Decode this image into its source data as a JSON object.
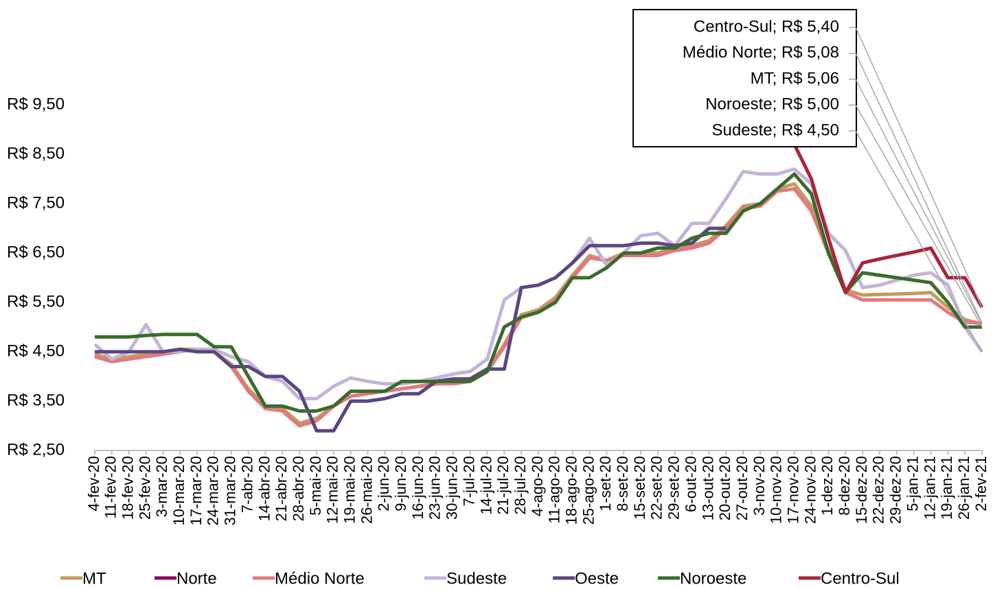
{
  "chart_data": {
    "type": "line",
    "categories": [
      "4-fev-20",
      "11-fev-20",
      "18-fev-20",
      "25-fev-20",
      "3-mar-20",
      "10-mar-20",
      "17-mar-20",
      "24-mar-20",
      "31-mar-20",
      "7-abr-20",
      "14-abr-20",
      "21-abr-20",
      "28-abr-20",
      "5-mai-20",
      "12-mai-20",
      "19-mai-20",
      "26-mai-20",
      "2-jun-20",
      "9-jun-20",
      "16-jun-20",
      "23-jun-20",
      "30-jun-20",
      "7-jul-20",
      "14-jul-20",
      "21-jul-20",
      "28-jul-20",
      "4-ago-20",
      "11-ago-20",
      "18-ago-20",
      "25-ago-20",
      "1-set-20",
      "8-set-20",
      "15-set-20",
      "22-set-20",
      "29-set-20",
      "6-out-20",
      "13-out-20",
      "20-out-20",
      "27-out-20",
      "3-nov-20",
      "10-nov-20",
      "17-nov-20",
      "24-nov-20",
      "1-dez-20",
      "8-dez-20",
      "15-dez-20",
      "22-dez-20",
      "29-dez-20",
      "5-jan-21",
      "12-jan-21",
      "19-jan-21",
      "26-jan-21",
      "2-fev-21"
    ],
    "series": [
      {
        "name": "MT",
        "color": "#c49a62",
        "values": [
          4.45,
          4.35,
          4.4,
          4.45,
          4.5,
          4.55,
          4.55,
          4.5,
          4.25,
          3.75,
          3.4,
          3.35,
          3.05,
          3.15,
          3.4,
          3.6,
          3.65,
          3.7,
          3.75,
          3.8,
          3.85,
          3.9,
          3.9,
          4.1,
          4.65,
          5.25,
          5.35,
          5.6,
          6.05,
          6.45,
          6.35,
          6.5,
          6.5,
          6.5,
          6.6,
          6.65,
          6.75,
          7.05,
          7.45,
          7.5,
          7.8,
          7.9,
          7.45,
          6.55,
          5.75,
          5.65,
          5.66,
          5.67,
          5.68,
          5.7,
          5.4,
          5.15,
          5.06
        ],
        "end_label": "MT; R$ 5,06"
      },
      {
        "name": "Norte",
        "color": "#8b0a64",
        "values": [
          null,
          null,
          null,
          null,
          null,
          null,
          null,
          null,
          null,
          null,
          null,
          null,
          null,
          null,
          null,
          null,
          null,
          null,
          null,
          null,
          null,
          null,
          null,
          null,
          null,
          null,
          null,
          null,
          null,
          null,
          null,
          null,
          null,
          null,
          null,
          null,
          null,
          null,
          null,
          null,
          null,
          null,
          null,
          null,
          null,
          null,
          null,
          null,
          null,
          null,
          null,
          null,
          null
        ]
      },
      {
        "name": "Médio Norte",
        "color": "#e07a7e",
        "values": [
          4.4,
          4.3,
          4.35,
          4.4,
          4.45,
          4.5,
          4.55,
          4.5,
          4.2,
          3.7,
          3.35,
          3.3,
          3.0,
          3.1,
          3.4,
          3.6,
          3.65,
          3.7,
          3.75,
          3.8,
          3.85,
          3.85,
          3.9,
          4.1,
          4.6,
          5.2,
          5.3,
          5.55,
          6.0,
          6.4,
          6.35,
          6.45,
          6.45,
          6.45,
          6.55,
          6.6,
          6.7,
          7.0,
          7.4,
          7.45,
          7.75,
          7.8,
          7.35,
          6.5,
          5.7,
          5.55,
          5.55,
          5.55,
          5.55,
          5.55,
          5.3,
          5.1,
          5.08
        ],
        "end_label": "Médio Norte; R$ 5,08"
      },
      {
        "name": "Sudeste",
        "color": "#c4b4d8",
        "values": [
          4.65,
          4.35,
          4.5,
          5.05,
          4.5,
          4.5,
          4.55,
          4.55,
          4.4,
          4.3,
          4.0,
          3.9,
          3.55,
          3.55,
          3.8,
          3.97,
          3.9,
          3.85,
          3.85,
          3.9,
          3.97,
          4.05,
          4.1,
          4.35,
          5.55,
          5.8,
          5.85,
          6.0,
          6.3,
          6.8,
          6.25,
          6.5,
          6.85,
          6.9,
          6.65,
          7.1,
          7.1,
          7.6,
          8.15,
          8.1,
          8.1,
          8.2,
          7.9,
          6.9,
          6.55,
          5.8,
          5.85,
          5.95,
          6.05,
          6.1,
          5.85,
          5.0,
          4.5
        ],
        "end_label": "Sudeste; R$ 4,50"
      },
      {
        "name": "Oeste",
        "color": "#5b4680",
        "values": [
          4.5,
          4.5,
          4.5,
          4.5,
          4.5,
          4.55,
          4.5,
          4.5,
          4.2,
          4.2,
          4.0,
          4.0,
          3.7,
          2.9,
          2.9,
          3.5,
          3.5,
          3.55,
          3.65,
          3.65,
          3.9,
          3.95,
          3.95,
          4.15,
          4.15,
          5.8,
          5.85,
          6.0,
          6.3,
          6.65,
          6.65,
          6.65,
          6.7,
          6.7,
          6.65,
          6.7,
          7.0,
          7.0,
          null,
          null,
          null,
          null,
          null,
          null,
          null,
          null,
          null,
          null,
          null,
          null,
          null,
          null,
          null
        ]
      },
      {
        "name": "Noroeste",
        "color": "#3a6b2c",
        "values": [
          4.8,
          4.8,
          4.8,
          4.83,
          4.85,
          4.85,
          4.85,
          4.6,
          4.6,
          4.0,
          3.4,
          3.4,
          3.3,
          3.3,
          3.4,
          3.7,
          3.7,
          3.7,
          3.9,
          3.9,
          3.9,
          3.9,
          3.9,
          4.1,
          5.0,
          5.2,
          5.3,
          5.5,
          6.0,
          6.0,
          6.2,
          6.5,
          6.5,
          6.6,
          6.6,
          6.8,
          6.9,
          6.9,
          7.35,
          7.5,
          7.8,
          8.1,
          7.7,
          6.5,
          5.7,
          6.1,
          6.05,
          6.0,
          5.95,
          5.9,
          5.5,
          5.0,
          5.0
        ],
        "end_label": "Noroeste; R$ 5,00"
      },
      {
        "name": "Centro-Sul",
        "color": "#a8243a",
        "values": [
          null,
          null,
          null,
          null,
          null,
          null,
          null,
          null,
          null,
          null,
          null,
          null,
          null,
          null,
          null,
          null,
          null,
          null,
          null,
          null,
          null,
          null,
          null,
          null,
          null,
          null,
          null,
          null,
          null,
          null,
          null,
          null,
          null,
          null,
          null,
          null,
          null,
          null,
          null,
          null,
          null,
          8.7,
          8.0,
          6.8,
          5.7,
          6.3,
          6.38,
          6.45,
          6.52,
          6.6,
          6.0,
          6.0,
          5.4
        ],
        "end_label": "Centro-Sul; R$ 5,40"
      }
    ],
    "ylim": [
      2.5,
      9.5
    ],
    "yticks": [
      {
        "value": 2.5,
        "label": "R$ 2,50"
      },
      {
        "value": 3.5,
        "label": "R$ 3,50"
      },
      {
        "value": 4.5,
        "label": "R$ 4,50"
      },
      {
        "value": 5.5,
        "label": "R$ 5,50"
      },
      {
        "value": 6.5,
        "label": "R$ 6,50"
      },
      {
        "value": 7.5,
        "label": "R$ 7,50"
      },
      {
        "value": 8.5,
        "label": "R$ 8,50"
      },
      {
        "value": 9.5,
        "label": "R$ 9,50"
      }
    ],
    "legend": "bottom"
  }
}
